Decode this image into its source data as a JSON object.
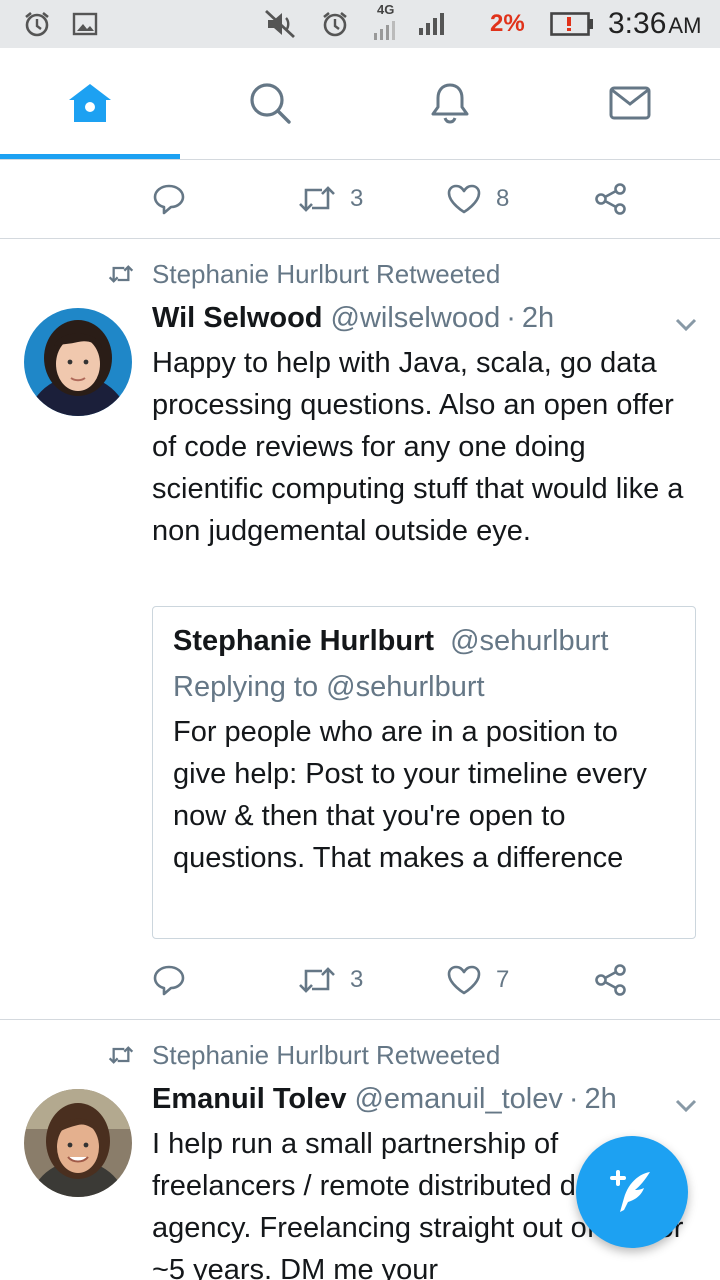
{
  "status_bar": {
    "network": "4G",
    "battery_percent": "2%",
    "time": "3:36",
    "ampm": "AM"
  },
  "nav": {
    "tabs": [
      "home",
      "search",
      "notifications",
      "messages"
    ],
    "active_tab": "home",
    "accent_color": "#1da1f2"
  },
  "feed": {
    "partial_tweet": {
      "retweets": "3",
      "likes": "8"
    },
    "tweets": [
      {
        "retweeted_by": "Stephanie Hurlburt Retweeted",
        "name": "Wil Selwood",
        "handle": "@wilselwood",
        "separator": "·",
        "time": "2h",
        "text": "Happy to help with Java, scala, go data processing questions. Also an open offer of code reviews for any one doing scientific computing stuff that would like a non judgemental outside eye.",
        "quote": {
          "name": "Stephanie Hurlburt",
          "handle": "@sehurlburt",
          "replying_to": "Replying to @sehurlburt",
          "text": "For people who are in a position to give help: Post to your timeline every now & then that you're open to questions. That makes a difference"
        },
        "retweets": "3",
        "likes": "7"
      },
      {
        "retweeted_by": "Stephanie Hurlburt Retweeted",
        "name": "Emanuil Tolev",
        "handle": "@emanuil_tolev",
        "separator": "·",
        "time": "2h",
        "text": "I help run a small partnership of freelancers / remote distributed dev agency. Freelancing straight out of uni for ~5 years. DM me your"
      }
    ]
  },
  "fab": {
    "icon": "compose-tweet-icon"
  }
}
